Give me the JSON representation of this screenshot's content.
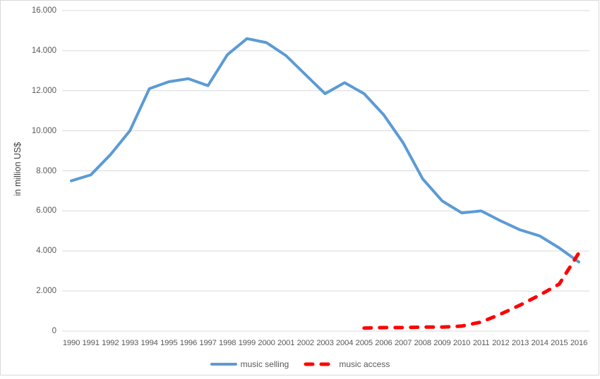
{
  "chart_data": {
    "type": "line",
    "title": "",
    "xlabel": "",
    "ylabel": "in million US$",
    "ylim": [
      0,
      16000
    ],
    "grid": true,
    "legend_position": "bottom-center",
    "x_ticks": [
      "1990",
      "1991",
      "1992",
      "1993",
      "1994",
      "1995",
      "1996",
      "1997",
      "1998",
      "1999",
      "2000",
      "2001",
      "2002",
      "2003",
      "2004",
      "2005",
      "2006",
      "2007",
      "2008",
      "2009",
      "2010",
      "2011",
      "2012",
      "2013",
      "2014",
      "2015",
      "2016"
    ],
    "y_tick_labels": [
      "0",
      "2.000",
      "4.000",
      "6.000",
      "8.000",
      "10.000",
      "12.000",
      "14.000",
      "16.000"
    ],
    "y_tick_values": [
      0,
      2000,
      4000,
      6000,
      8000,
      10000,
      12000,
      14000,
      16000
    ],
    "series": [
      {
        "name": "music selling",
        "color": "#5B9BD5",
        "line_style": "solid",
        "values": [
          7500,
          7800,
          8800,
          10000,
          12100,
          12450,
          12600,
          12250,
          13800,
          14600,
          14400,
          13750,
          12800,
          11850,
          12400,
          11850,
          10800,
          9400,
          7600,
          6500,
          5900,
          6000,
          5500,
          5050,
          4750,
          4150,
          3450
        ]
      },
      {
        "name": "music access",
        "color": "#FF0000",
        "line_style": "dashed",
        "values": [
          null,
          null,
          null,
          null,
          null,
          null,
          null,
          null,
          null,
          null,
          null,
          null,
          null,
          null,
          null,
          150,
          175,
          175,
          200,
          200,
          250,
          450,
          850,
          1300,
          1800,
          2350,
          3900
        ]
      }
    ]
  },
  "layout_colors": {
    "gridline": "#D9D9D9",
    "frame_border": "#D9D9D9",
    "axis_text": "#595959",
    "background": "#FFFFFF"
  }
}
